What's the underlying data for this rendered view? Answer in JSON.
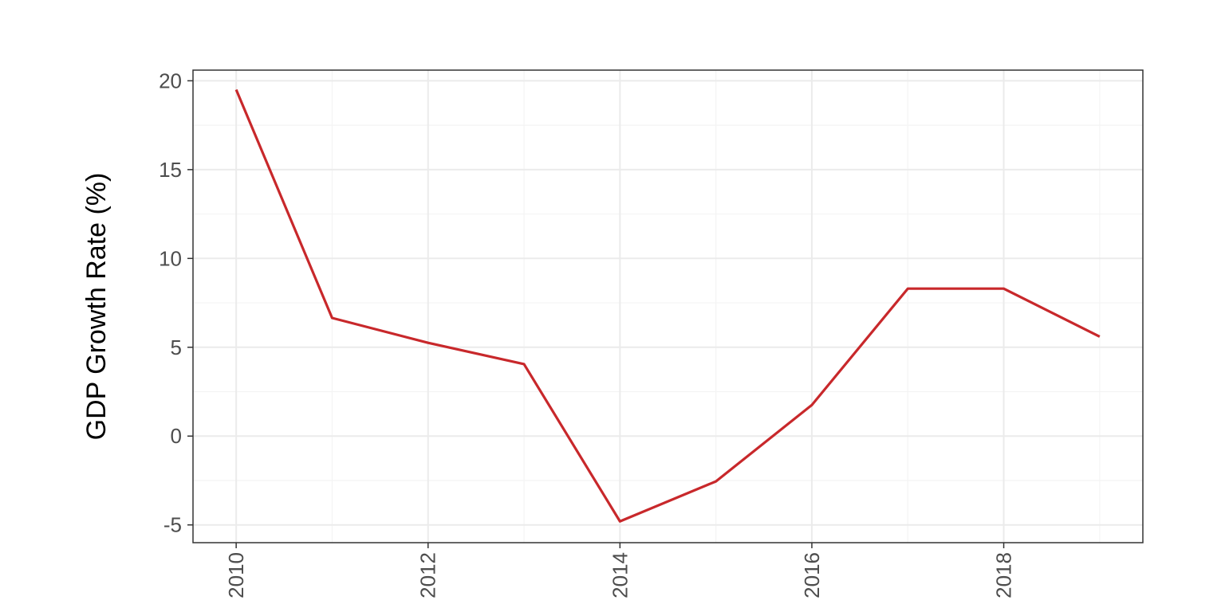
{
  "chart_data": {
    "type": "line",
    "title": "",
    "xlabel": "",
    "ylabel": "GDP Growth Rate (%)",
    "x": [
      2010,
      2011,
      2012,
      2013,
      2014,
      2015,
      2016,
      2017,
      2018,
      2019
    ],
    "series": [
      {
        "values": [
          19.5,
          6.65,
          5.25,
          4.05,
          -4.8,
          -2.55,
          1.75,
          8.3,
          8.3,
          5.6
        ],
        "color": "#c8282b"
      }
    ],
    "xlim": [
      2009.55,
      2019.45
    ],
    "ylim": [
      -6.0,
      20.6
    ],
    "x_ticks": [
      2010,
      2012,
      2014,
      2016,
      2018
    ],
    "x_tick_labels": [
      "2010",
      "2012",
      "2014",
      "2016",
      "2018"
    ],
    "y_ticks": [
      -5,
      0,
      5,
      10,
      15,
      20
    ],
    "y_tick_labels": [
      "-5",
      "0",
      "5",
      "10",
      "15",
      "20"
    ],
    "x_tick_label_rotation": "vertical",
    "grid": true,
    "legend": "none",
    "colors": {
      "panel_background": "#ffffff",
      "grid_major": "#ebebeb",
      "grid_minor": "#f4f4f4",
      "panel_border": "#333333",
      "tick_label": "#4d4d4d"
    }
  }
}
